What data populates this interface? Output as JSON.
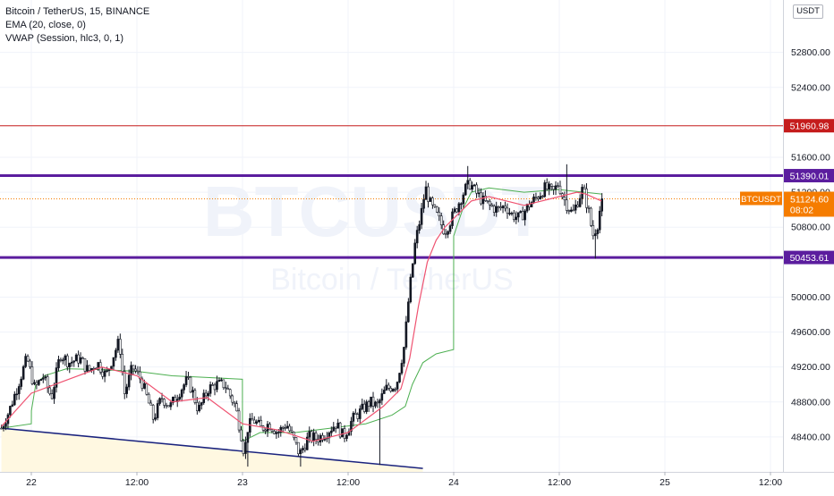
{
  "legend": {
    "symbol": "Bitcoin / TetherUS, 15, BINANCE",
    "ema": "EMA (20, close, 0)",
    "vwap": "VWAP (Session, hlc3, 0, 1)"
  },
  "currency_badge": "USDT",
  "watermark": {
    "ticker": "BTCUSDT",
    "name": "Bitcoin / TetherUS"
  },
  "colors": {
    "up_candle": "#131722",
    "down_candle": "#ffffff",
    "ema": "#ef5371",
    "vwap": "#4caf50",
    "level_red": "#c51c1c",
    "level_purple": "#5b1d9e",
    "last_price": "#f57c00",
    "trend_line": "#1a237e",
    "trend_fill": "#fff8e1",
    "grid": "#f0f3fa",
    "axis_text": "#131722"
  },
  "chart_data": {
    "type": "candlestick",
    "symbol": "BTCUSDT",
    "interval_minutes": 15,
    "ylim": [
      48000,
      53400
    ],
    "y_ticks": [
      52800,
      52400,
      51600,
      51200,
      50800,
      50000,
      49600,
      49200,
      48800,
      48400
    ],
    "y_tick_labels": [
      "52800.00",
      "52400.00",
      "51600.00",
      "51200.00",
      "50800.00",
      "50000.00",
      "49600.00",
      "49200.00",
      "48800.00",
      "48400.00"
    ],
    "x_ticks": [
      {
        "label": "22",
        "hours": 0
      },
      {
        "label": "12:00",
        "hours": 12
      },
      {
        "label": "23",
        "hours": 24
      },
      {
        "label": "12:00",
        "hours": 36
      },
      {
        "label": "24",
        "hours": 48
      },
      {
        "label": "12:00",
        "hours": 60
      },
      {
        "label": "25",
        "hours": 72
      },
      {
        "label": "12:00",
        "hours": 84
      }
    ],
    "horizontal_levels": [
      {
        "value": 51960.98,
        "label": "51960.98",
        "style": "thin",
        "color": "#c51c1c"
      },
      {
        "value": 51390.01,
        "label": "51390.01",
        "style": "thick",
        "color": "#5b1d9e"
      },
      {
        "value": 50453.61,
        "label": "50453.61",
        "style": "thick",
        "color": "#5b1d9e"
      }
    ],
    "last_price": {
      "symbol": "BTCUSDT",
      "value": 51124.6,
      "label": "51124.60",
      "countdown": "08:02"
    },
    "close_anchors": [
      [
        -3.4,
        48500
      ],
      [
        -2.5,
        48700
      ],
      [
        -1.5,
        49000
      ],
      [
        -0.5,
        49300
      ],
      [
        0.4,
        48950
      ],
      [
        1.3,
        49100
      ],
      [
        2.3,
        48850
      ],
      [
        3.3,
        49350
      ],
      [
        4.3,
        49250
      ],
      [
        5.5,
        49300
      ],
      [
        6.5,
        49150
      ],
      [
        7.5,
        49250
      ],
      [
        8.5,
        49100
      ],
      [
        9.4,
        49350
      ],
      [
        10.0,
        49500
      ],
      [
        10.6,
        48900
      ],
      [
        11.5,
        49200
      ],
      [
        12.5,
        49050
      ],
      [
        13.3,
        48800
      ],
      [
        13.9,
        48600
      ],
      [
        14.8,
        48850
      ],
      [
        15.8,
        48750
      ],
      [
        16.7,
        48900
      ],
      [
        17.7,
        49050
      ],
      [
        18.2,
        48950
      ],
      [
        19.0,
        48700
      ],
      [
        20.1,
        48950
      ],
      [
        21.0,
        49000
      ],
      [
        22.0,
        49000
      ],
      [
        23.2,
        48750
      ],
      [
        23.9,
        48400
      ],
      [
        24.2,
        48200
      ],
      [
        24.6,
        48500
      ],
      [
        25.2,
        48600
      ],
      [
        26.1,
        48500
      ],
      [
        27.0,
        48550
      ],
      [
        28.0,
        48450
      ],
      [
        29.0,
        48550
      ],
      [
        29.9,
        48350
      ],
      [
        30.5,
        48200
      ],
      [
        31.5,
        48400
      ],
      [
        32.5,
        48380
      ],
      [
        33.5,
        48450
      ],
      [
        34.6,
        48550
      ],
      [
        35.5,
        48400
      ],
      [
        36.5,
        48600
      ],
      [
        37.5,
        48700
      ],
      [
        38.5,
        48800
      ],
      [
        39.3,
        48750
      ],
      [
        40.3,
        48950
      ],
      [
        41.5,
        49000
      ],
      [
        42.4,
        49450
      ],
      [
        42.9,
        50000
      ],
      [
        43.6,
        50600
      ],
      [
        44.3,
        50950
      ],
      [
        44.8,
        51250
      ],
      [
        45.4,
        51050
      ],
      [
        46.0,
        50950
      ],
      [
        47.0,
        50750
      ],
      [
        48.0,
        50950
      ],
      [
        48.9,
        51150
      ],
      [
        49.4,
        51250
      ],
      [
        49.9,
        51300
      ],
      [
        50.5,
        51200
      ],
      [
        51.3,
        51100
      ],
      [
        52.0,
        51050
      ],
      [
        53.0,
        51000
      ],
      [
        53.9,
        51050
      ],
      [
        54.5,
        50950
      ],
      [
        55.5,
        50900
      ],
      [
        56.5,
        51050
      ],
      [
        57.5,
        51150
      ],
      [
        58.4,
        51250
      ],
      [
        59.3,
        51200
      ],
      [
        59.9,
        51300
      ],
      [
        60.4,
        51150
      ],
      [
        60.9,
        51050
      ],
      [
        61.5,
        50950
      ],
      [
        62.1,
        51100
      ],
      [
        62.7,
        51250
      ],
      [
        63.4,
        50950
      ],
      [
        63.8,
        50700
      ],
      [
        64.4,
        50850
      ],
      [
        64.8,
        51124.6
      ]
    ],
    "wick_extremes": [
      {
        "hours": 49.6,
        "high": 51500
      },
      {
        "hours": 60.9,
        "high": 51520
      },
      {
        "hours": 64.2,
        "low": 50440
      },
      {
        "hours": 24.5,
        "low": 48060
      },
      {
        "hours": 30.5,
        "low": 48060
      },
      {
        "hours": 39.5,
        "low": 48080
      }
    ],
    "ema_series": {
      "name": "EMA (20, close, 0)",
      "points": [
        [
          -3.4,
          48520
        ],
        [
          0,
          48900
        ],
        [
          4,
          49050
        ],
        [
          8,
          49200
        ],
        [
          12,
          49100
        ],
        [
          16,
          48800
        ],
        [
          20,
          48850
        ],
        [
          24,
          48550
        ],
        [
          28,
          48480
        ],
        [
          32,
          48350
        ],
        [
          36,
          48450
        ],
        [
          40,
          48750
        ],
        [
          42,
          48950
        ],
        [
          43,
          49300
        ],
        [
          44,
          49900
        ],
        [
          45,
          50400
        ],
        [
          46,
          50650
        ],
        [
          47,
          50800
        ],
        [
          48,
          50900
        ],
        [
          50,
          51100
        ],
        [
          52,
          51150
        ],
        [
          56,
          51050
        ],
        [
          60,
          51150
        ],
        [
          62,
          51200
        ],
        [
          63,
          51180
        ],
        [
          64.8,
          51100
        ]
      ]
    },
    "vwap_series": {
      "name": "VWAP (Session, hlc3, 0, 1)",
      "points": [
        [
          -3.4,
          48500
        ],
        [
          0,
          48550
        ],
        [
          0.01,
          48700
        ],
        [
          0.5,
          49000
        ],
        [
          1.5,
          49100
        ],
        [
          4,
          49180
        ],
        [
          8,
          49170
        ],
        [
          12,
          49150
        ],
        [
          16,
          49100
        ],
        [
          20,
          49080
        ],
        [
          23.99,
          49060
        ],
        [
          24,
          48350
        ],
        [
          26,
          48450
        ],
        [
          30,
          48450
        ],
        [
          34,
          48500
        ],
        [
          38,
          48550
        ],
        [
          41,
          48650
        ],
        [
          42.5,
          48750
        ],
        [
          43.3,
          49000
        ],
        [
          44.5,
          49250
        ],
        [
          46,
          49350
        ],
        [
          47.99,
          49400
        ],
        [
          48,
          50700
        ],
        [
          49,
          51000
        ],
        [
          50,
          51200
        ],
        [
          52,
          51250
        ],
        [
          56,
          51200
        ],
        [
          60,
          51230
        ],
        [
          64.8,
          51180
        ]
      ]
    },
    "trend_line": {
      "points": [
        [
          -3.4,
          48500
        ],
        [
          44.5,
          48040
        ]
      ]
    }
  }
}
